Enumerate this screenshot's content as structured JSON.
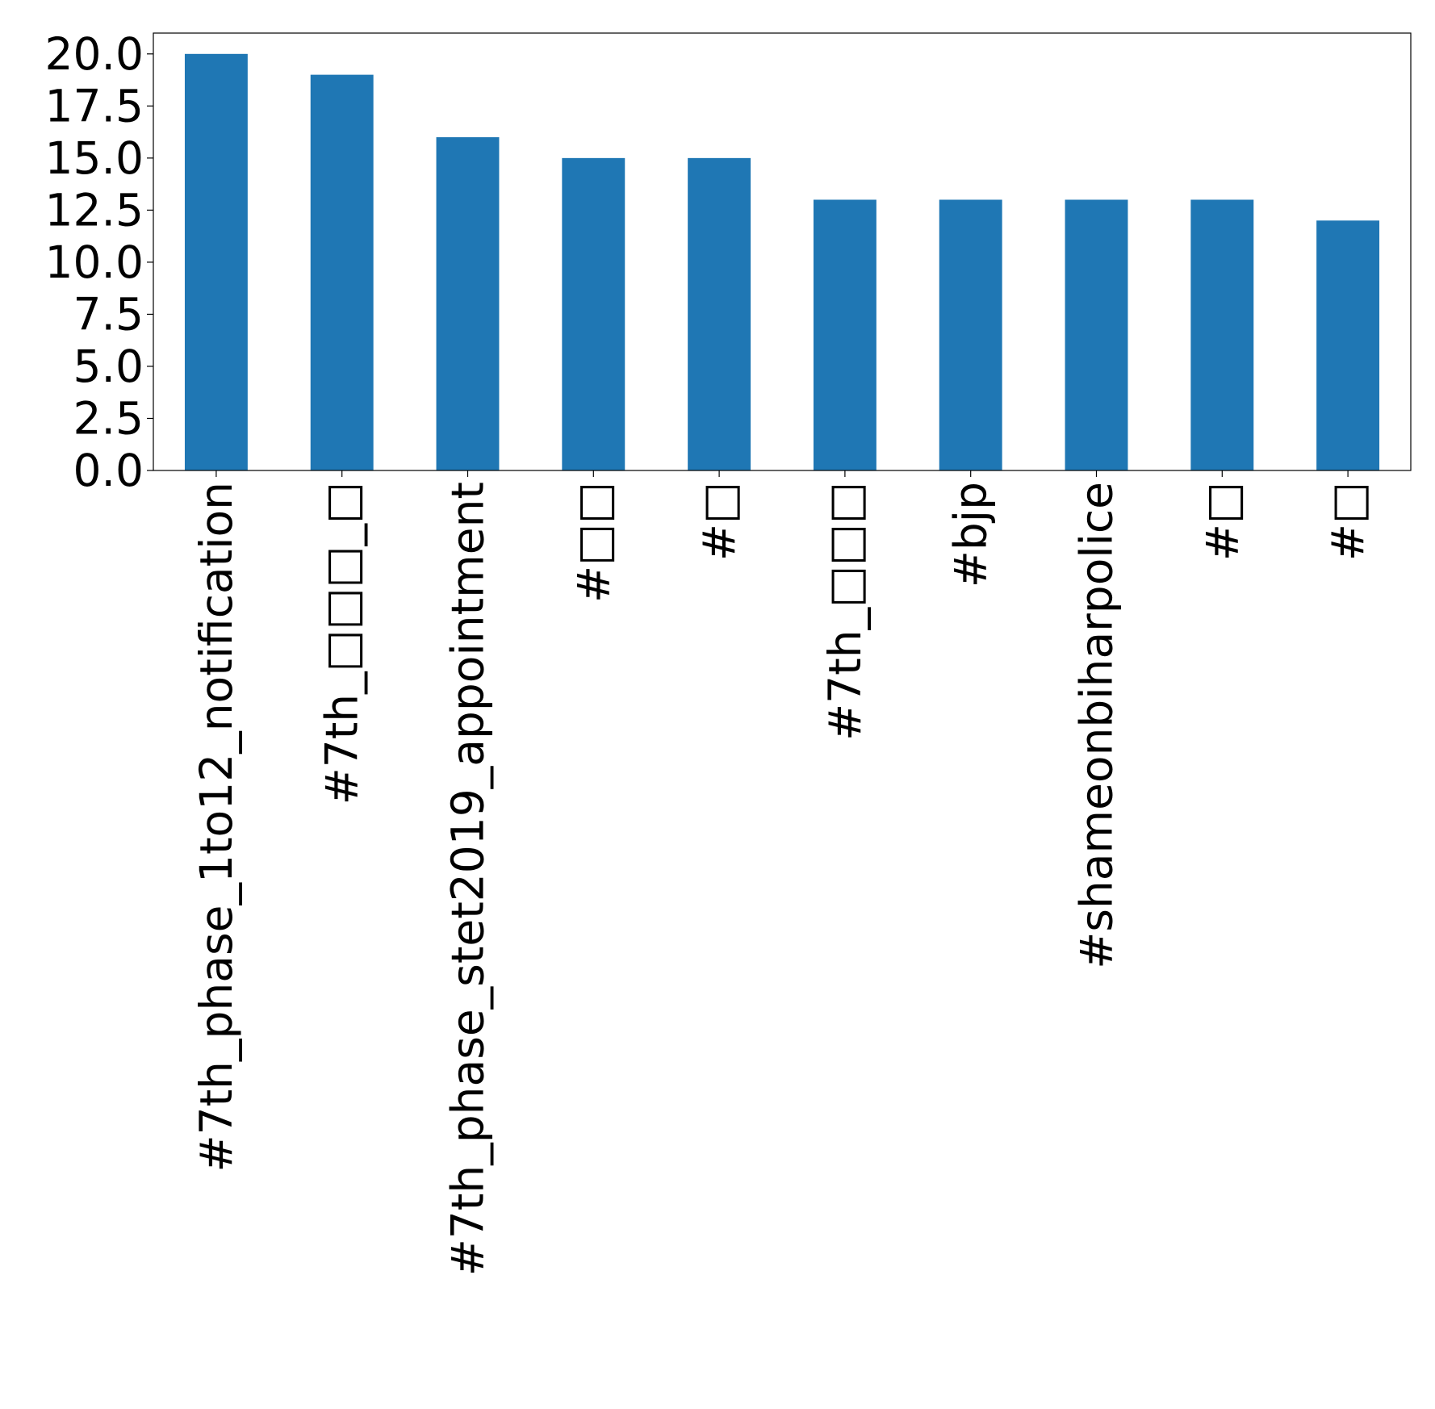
{
  "chart_data": {
    "type": "bar",
    "categories": [
      "#7th_phase_1to12_notification",
      "#7th_□□□_□",
      "#7th_phase_stet2019_appointment",
      "#□□",
      "#□",
      "#7th_□□□",
      "#bjp",
      "#shameonbiharpolice",
      "#□",
      "#□"
    ],
    "values": [
      20,
      19,
      16,
      15,
      15,
      13,
      13,
      13,
      13,
      12
    ],
    "color": "#1f77b4",
    "ylim": [
      0,
      21
    ],
    "yticks": [
      {
        "value": 0,
        "label": "0.0"
      },
      {
        "value": 2.5,
        "label": "2.5"
      },
      {
        "value": 5,
        "label": "5.0"
      },
      {
        "value": 7.5,
        "label": "7.5"
      },
      {
        "value": 10,
        "label": "10.0"
      },
      {
        "value": 12.5,
        "label": "12.5"
      },
      {
        "value": 15,
        "label": "15.0"
      },
      {
        "value": 17.5,
        "label": "17.5"
      },
      {
        "value": 20,
        "label": "20.0"
      }
    ],
    "grid": false
  }
}
